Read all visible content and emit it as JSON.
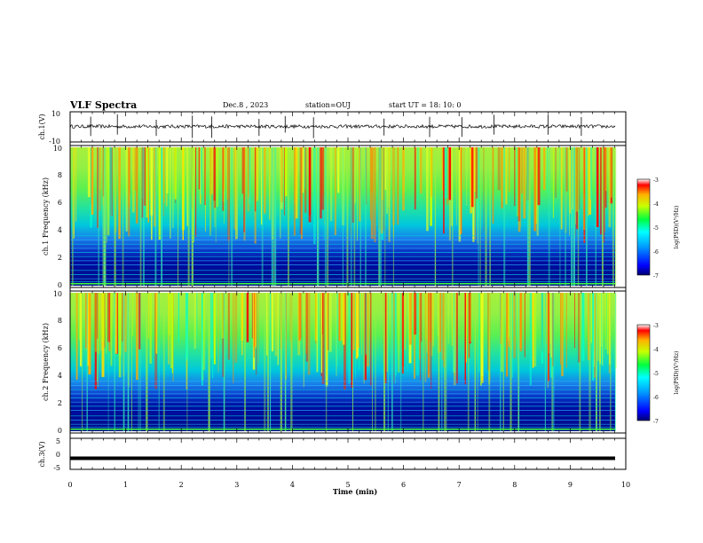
{
  "header": {
    "title": "VLF Spectra",
    "date": "Dec.8 , 2023",
    "station": "station=OUJ",
    "start_time": "start UT = 18: 10: 0"
  },
  "chart_data": [
    {
      "type": "line",
      "panel": "ch1-waveform",
      "ylabel": "ch.1(V)",
      "ylim": [
        -10,
        10
      ],
      "yticks": [
        "10",
        "-10"
      ],
      "xlim": [
        0,
        10
      ],
      "baseline": 0.3,
      "amplitude_typical": 1.2,
      "spikes_min": [
        0.0,
        0.37,
        0.85,
        1.55,
        2.2,
        2.55,
        3.4,
        3.87,
        4.38,
        5.65,
        6.47,
        7.05,
        7.63,
        8.6,
        9.2
      ]
    },
    {
      "type": "heatmap",
      "panel": "ch1-spectrogram",
      "ylabel": "ch.1 Frequency (kHz)",
      "ylim": [
        0,
        10
      ],
      "yticks": [
        "0",
        "2",
        "4",
        "6",
        "8",
        "10"
      ],
      "xlim": [
        0,
        10
      ],
      "colorbar": {
        "label": "log(PSD)(V²/Hz)",
        "range": [
          -7,
          -3
        ],
        "ticks": [
          "-3",
          "-4",
          "-5",
          "-6",
          "-7"
        ]
      }
    },
    {
      "type": "heatmap",
      "panel": "ch2-spectrogram",
      "ylabel": "ch.2 Frequency (kHz)",
      "ylim": [
        0,
        10
      ],
      "yticks": [
        "0",
        "2",
        "4",
        "6",
        "8",
        "10"
      ],
      "xlim": [
        0,
        10
      ],
      "colorbar": {
        "label": "log(PSD)(V²/Hz)",
        "range": [
          -7,
          -3
        ],
        "ticks": [
          "-3",
          "-4",
          "-5",
          "-6",
          "-7"
        ]
      }
    },
    {
      "type": "line",
      "panel": "ch3-waveform",
      "ylabel": "ch.3(V)",
      "ylim": [
        -5,
        5
      ],
      "yticks": [
        "5",
        "0",
        "-5"
      ],
      "xlim": [
        0,
        10
      ],
      "value": -1.5
    }
  ],
  "xaxis": {
    "label": "Time (min)",
    "ticks": [
      "0",
      "1",
      "2",
      "3",
      "4",
      "5",
      "6",
      "7",
      "8",
      "9",
      "10"
    ]
  }
}
